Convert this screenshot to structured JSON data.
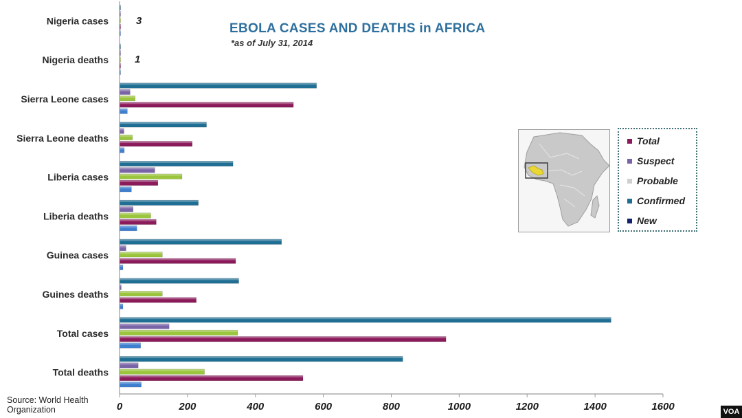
{
  "title": "EBOLA CASES AND DEATHS in AFRICA",
  "subtitle": "*as of July 31, 2014",
  "source": "Source: World Health Organization",
  "logo_text": "VOA",
  "annotations": [
    {
      "category": "Nigeria cases",
      "text": "3"
    },
    {
      "category": "Nigeria deaths",
      "text": "1"
    }
  ],
  "colors": {
    "Total": "#8b1a5a",
    "Suspect": "#7a64a8",
    "Probable": "#9bc53d",
    "Confirmed": "#1f6e93",
    "New": "#3f7fd0",
    "title": "#2d6f9e"
  },
  "map_icon": "africa-map-icon",
  "chart_data": {
    "type": "bar",
    "orientation": "horizontal",
    "title": "EBOLA CASES AND DEATHS in AFRICA",
    "subtitle": "*as of July 31, 2014",
    "xlim": [
      0,
      1600
    ],
    "xticks": [
      0,
      200,
      400,
      600,
      800,
      1000,
      1200,
      1400,
      1600
    ],
    "xtick_labels": [
      "0",
      "200",
      "400",
      "600",
      "800",
      "1000",
      "1200",
      "1400",
      "1600"
    ],
    "categories": [
      "Nigeria cases",
      "Nigeria deaths",
      "Sierra Leone cases",
      "Sierra Leone deaths",
      "Liberia cases",
      "Liberia deaths",
      "Guinea cases",
      "Guines deaths",
      "Total cases",
      "Total deaths"
    ],
    "legend": [
      "Total",
      "Suspect",
      "Probable",
      "Confirmed",
      "New"
    ],
    "legend_position": "right",
    "grid": false,
    "series": [
      {
        "name": "Confirmed",
        "values": [
          3,
          1,
          580,
          256,
          334,
          232,
          477,
          351,
          1447,
          834
        ]
      },
      {
        "name": "Suspect",
        "values": [
          2,
          1,
          31,
          13,
          104,
          40,
          19,
          5,
          146,
          55
        ]
      },
      {
        "name": "Probable",
        "values": [
          3,
          1,
          46,
          38,
          184,
          92,
          126,
          126,
          348,
          250
        ]
      },
      {
        "name": "Total",
        "values": [
          3,
          1,
          512,
          214,
          113,
          108,
          342,
          226,
          961,
          540
        ]
      },
      {
        "name": "New",
        "values": [
          3,
          1,
          23,
          14,
          35,
          51,
          10,
          10,
          62,
          64
        ]
      }
    ]
  }
}
